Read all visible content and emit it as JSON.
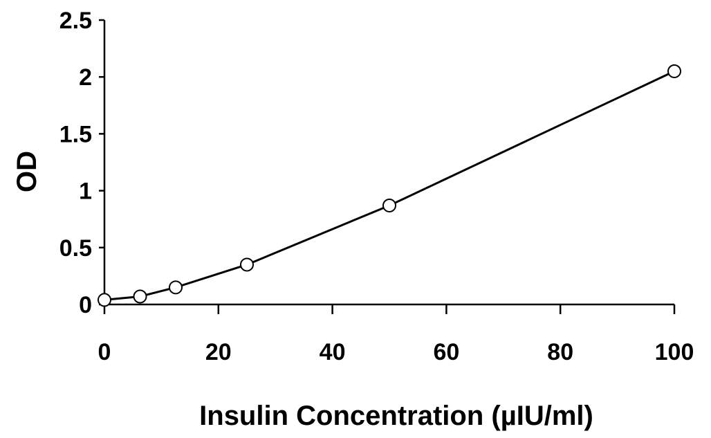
{
  "chart_data": {
    "type": "line",
    "title": "",
    "xlabel": "Insulin Concentration (µIU/ml)",
    "ylabel": "OD",
    "xlim": [
      0,
      100
    ],
    "ylim": [
      0,
      2.5
    ],
    "xticks": [
      0,
      20,
      40,
      60,
      80,
      100
    ],
    "xtick_labels": [
      "0",
      "20",
      "40",
      "60",
      "80",
      "100"
    ],
    "yticks": [
      0,
      0.5,
      1,
      1.5,
      2,
      2.5
    ],
    "ytick_labels": [
      "0",
      "0.5",
      "1",
      "1.5",
      "2",
      "2.5"
    ],
    "grid": false,
    "legend": "none",
    "series": [
      {
        "x": [
          0,
          6.25,
          12.5,
          25,
          50,
          100
        ],
        "y": [
          0.04,
          0.07,
          0.15,
          0.35,
          0.87,
          2.05
        ],
        "line_color": "#000000",
        "marker": "open-circle",
        "marker_fill": "#ffffff"
      }
    ]
  }
}
